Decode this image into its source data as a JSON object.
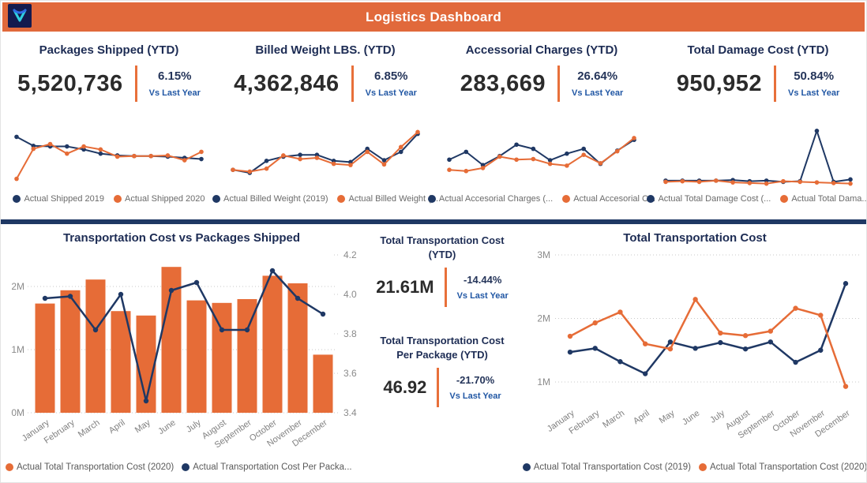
{
  "header": {
    "title": "Logistics Dashboard",
    "logo_icon": "v-monogram-logo"
  },
  "colors": {
    "header_orange": "#E1693B",
    "data_orange": "#E66C37",
    "data_navy": "#1F3864",
    "divider_navy": "#1F3864",
    "delta_link_blue": "#2157A4",
    "title_navy": "#1D2C54",
    "value_dark": "#2B2B2B",
    "axis_gray": "#8A8A8A",
    "legend_gray": "#6A6A6A"
  },
  "kpi_cards": [
    {
      "title": "Packages Shipped (YTD)",
      "value": "5,520,736",
      "delta": "6.15%",
      "delta_label": "Vs Last Year"
    },
    {
      "title": "Billed Weight LBS. (YTD)",
      "value": "4,362,846",
      "delta": "6.85%",
      "delta_label": "Vs Last Year"
    },
    {
      "title": "Accessorial Charges (YTD)",
      "value": "283,669",
      "delta": "26.64%",
      "delta_label": "Vs Last Year"
    },
    {
      "title": "Total Damage Cost (YTD)",
      "value": "950,952",
      "delta": "50.84%",
      "delta_label": "Vs Last Year"
    }
  ],
  "center_kpis": [
    {
      "title": "Total Transportation Cost (YTD)",
      "value": "21.61M",
      "delta": "-14.44%",
      "delta_label": "Vs Last Year"
    },
    {
      "title": "Total Transportation Cost Per Package (YTD)",
      "value": "46.92",
      "delta": "-21.70%",
      "delta_label": "Vs Last Year"
    }
  ],
  "chart_data": [
    {
      "type": "line",
      "panel": "Packages Shipped (YTD) sparkline",
      "x": "Jan–Dec, 12 monthly points (axes hidden)",
      "scale": "relative 0–100",
      "series": [
        {
          "name": "Actual Shipped 2019",
          "color": "#1F3864",
          "values": [
            85,
            70,
            69,
            69,
            64,
            57,
            54,
            53,
            53,
            52,
            50,
            48
          ]
        },
        {
          "name": "Actual Shipped 2020",
          "color": "#E66C37",
          "values": [
            15,
            65,
            73,
            57,
            69,
            64,
            52,
            53,
            53,
            54,
            46,
            60
          ]
        }
      ]
    },
    {
      "type": "line",
      "panel": "Billed Weight LBS. (YTD) sparkline",
      "x": "Jan–Dec, 12 monthly points (axes hidden)",
      "scale": "relative 0–100",
      "series": [
        {
          "name": "Actual Billed Weight (2019)",
          "color": "#1F3864",
          "values": [
            30,
            25,
            45,
            52,
            55,
            55,
            45,
            43,
            65,
            46,
            60,
            90
          ]
        },
        {
          "name": "Actual Billed Weight (...",
          "color": "#E66C37",
          "values": [
            30,
            27,
            32,
            54,
            48,
            50,
            40,
            38,
            60,
            39,
            68,
            93
          ]
        }
      ]
    },
    {
      "type": "line",
      "panel": "Accessorial Charges (YTD) sparkline",
      "x": "Jan–Dec, 12 monthly points (axes hidden)",
      "scale": "relative 0–100",
      "series": [
        {
          "name": "Actual Accesorial Charges (...",
          "color": "#1F3864",
          "values": [
            47,
            60,
            38,
            53,
            72,
            65,
            46,
            57,
            65,
            40,
            62,
            80
          ]
        },
        {
          "name": "Actual Accesorial C...",
          "color": "#E66C37",
          "values": [
            30,
            28,
            33,
            52,
            47,
            48,
            40,
            37,
            55,
            41,
            61,
            83
          ]
        }
      ]
    },
    {
      "type": "line",
      "panel": "Total Damage Cost (YTD) sparkline",
      "x": "Jan–Dec, 12 monthly points (axes hidden)",
      "scale": "relative 0–100",
      "series": [
        {
          "name": "Actual Total Damage Cost (...",
          "color": "#1F3864",
          "values": [
            12,
            12,
            12,
            12,
            13,
            11,
            12,
            10,
            11,
            95,
            10,
            14
          ]
        },
        {
          "name": "Actual Total Dama...",
          "color": "#E66C37",
          "values": [
            10,
            11,
            10,
            12,
            9,
            8,
            7,
            11,
            10,
            9,
            8,
            7
          ]
        }
      ]
    },
    {
      "type": "bar+line",
      "title": "Transportation Cost vs Packages Shipped",
      "categories": [
        "January",
        "February",
        "March",
        "April",
        "May",
        "June",
        "July",
        "August",
        "September",
        "October",
        "November",
        "December"
      ],
      "bar_series": {
        "name": "Actual Total Transportation Cost (2020)",
        "color": "#E66C37",
        "axis": "left",
        "unit": "M",
        "values": [
          1.73,
          1.94,
          2.11,
          1.61,
          1.54,
          2.31,
          1.78,
          1.74,
          1.8,
          2.17,
          2.05,
          0.92
        ]
      },
      "line_series": {
        "name": "Actual Transportation Cost Per Packa...",
        "color": "#1F3864",
        "axis": "right",
        "values": [
          3.98,
          3.99,
          3.82,
          4.0,
          3.46,
          4.02,
          4.06,
          3.82,
          3.82,
          4.12,
          3.98,
          3.9
        ]
      },
      "left_axis": {
        "ticks": [
          "0M",
          "1M",
          "2M"
        ],
        "max": 2.5
      },
      "right_axis": {
        "ticks": [
          "3.4",
          "3.6",
          "3.8",
          "4.0",
          "4.2"
        ],
        "min": 3.4,
        "max": 4.2
      },
      "grid": "dotted horizontal"
    },
    {
      "type": "line",
      "title": "Total Transportation Cost",
      "categories": [
        "January",
        "February",
        "March",
        "April",
        "May",
        "June",
        "July",
        "August",
        "September",
        "October",
        "November",
        "December"
      ],
      "series": [
        {
          "name": "Actual Total Transportation Cost (2019)",
          "color": "#1F3864",
          "values": [
            1.47,
            1.53,
            1.32,
            1.13,
            1.63,
            1.53,
            1.62,
            1.52,
            1.63,
            1.31,
            1.5,
            2.55
          ]
        },
        {
          "name": "Actual Total Transportation Cost (2020)",
          "color": "#E66C37",
          "values": [
            1.72,
            1.93,
            2.1,
            1.6,
            1.52,
            2.3,
            1.77,
            1.73,
            1.8,
            2.16,
            2.05,
            0.93
          ]
        }
      ],
      "y_axis": {
        "ticks": [
          "1M",
          "2M",
          "3M"
        ],
        "unit": "M"
      },
      "grid": "dotted horizontal",
      "legend_position": "bottom center"
    }
  ]
}
